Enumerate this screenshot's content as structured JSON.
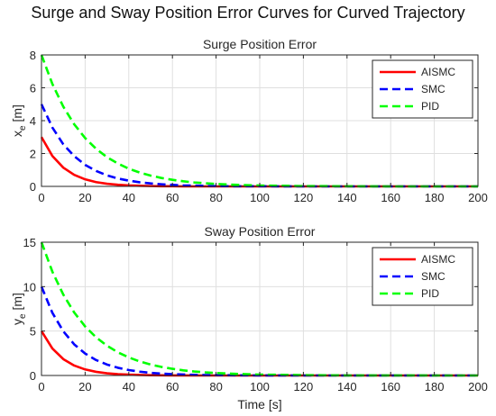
{
  "figure": {
    "title": "Surge and Sway Position Error Curves for Curved Trajectory"
  },
  "chart_data": [
    {
      "type": "line",
      "title": "Surge Position Error",
      "xlabel": "",
      "ylabel_main": "x",
      "ylabel_sub": "e",
      "ylabel_unit": " [m]",
      "xlim": [
        0,
        200
      ],
      "ylim": [
        0,
        8
      ],
      "xticks": [
        0,
        20,
        40,
        60,
        80,
        100,
        120,
        140,
        160,
        180,
        200
      ],
      "yticks": [
        0,
        2,
        4,
        6,
        8
      ],
      "grid": true,
      "legend_position": "top-right",
      "x": [
        0,
        5,
        10,
        15,
        20,
        25,
        30,
        35,
        40,
        45,
        50,
        55,
        60,
        65,
        70,
        75,
        80,
        90,
        100,
        120,
        140,
        160,
        180,
        200
      ],
      "series": [
        {
          "name": "AISMC",
          "color": "#ff0000",
          "dash": "solid",
          "values": [
            3.0,
            1.85,
            1.14,
            0.7,
            0.43,
            0.26,
            0.16,
            0.1,
            0.06,
            0.04,
            0.02,
            0.01,
            0.01,
            0.0,
            0.0,
            0.0,
            0.0,
            0.0,
            0.0,
            0.0,
            0.0,
            0.0,
            0.0,
            0.0
          ]
        },
        {
          "name": "SMC",
          "color": "#0000ff",
          "dash": "dashed",
          "values": [
            5.0,
            3.58,
            2.56,
            1.84,
            1.31,
            0.94,
            0.67,
            0.48,
            0.35,
            0.25,
            0.18,
            0.13,
            0.09,
            0.06,
            0.05,
            0.03,
            0.02,
            0.01,
            0.01,
            0.0,
            0.0,
            0.0,
            0.0,
            0.0
          ]
        },
        {
          "name": "PID",
          "color": "#00ff00",
          "dash": "dashed",
          "values": [
            8.0,
            6.23,
            4.85,
            3.78,
            2.94,
            2.29,
            1.78,
            1.39,
            1.08,
            0.84,
            0.66,
            0.51,
            0.4,
            0.31,
            0.24,
            0.19,
            0.15,
            0.09,
            0.05,
            0.02,
            0.01,
            0.0,
            0.0,
            0.0
          ]
        }
      ]
    },
    {
      "type": "line",
      "title": "Sway Position Error",
      "xlabel": "Time [s]",
      "ylabel_main": "y",
      "ylabel_sub": "e",
      "ylabel_unit": " [m]",
      "xlim": [
        0,
        200
      ],
      "ylim": [
        0,
        15
      ],
      "xticks": [
        0,
        20,
        40,
        60,
        80,
        100,
        120,
        140,
        160,
        180,
        200
      ],
      "yticks": [
        0,
        5,
        10,
        15
      ],
      "grid": true,
      "legend_position": "top-right",
      "x": [
        0,
        5,
        10,
        15,
        20,
        25,
        30,
        35,
        40,
        45,
        50,
        55,
        60,
        65,
        70,
        75,
        80,
        90,
        100,
        120,
        140,
        160,
        180,
        200
      ],
      "series": [
        {
          "name": "AISMC",
          "color": "#ff0000",
          "dash": "solid",
          "values": [
            5.0,
            3.03,
            1.84,
            1.12,
            0.68,
            0.41,
            0.25,
            0.15,
            0.09,
            0.06,
            0.03,
            0.02,
            0.01,
            0.01,
            0.0,
            0.0,
            0.0,
            0.0,
            0.0,
            0.0,
            0.0,
            0.0,
            0.0,
            0.0
          ]
        },
        {
          "name": "SMC",
          "color": "#0000ff",
          "dash": "dashed",
          "values": [
            10.0,
            7.05,
            4.97,
            3.5,
            2.47,
            1.74,
            1.23,
            0.87,
            0.61,
            0.43,
            0.3,
            0.21,
            0.15,
            0.11,
            0.07,
            0.05,
            0.04,
            0.02,
            0.01,
            0.0,
            0.0,
            0.0,
            0.0,
            0.0
          ]
        },
        {
          "name": "PID",
          "color": "#00ff00",
          "dash": "dashed",
          "values": [
            15.0,
            11.68,
            9.1,
            7.09,
            5.52,
            4.3,
            3.35,
            2.61,
            2.03,
            1.58,
            1.23,
            0.96,
            0.75,
            0.58,
            0.45,
            0.35,
            0.28,
            0.17,
            0.1,
            0.04,
            0.01,
            0.01,
            0.0,
            0.0
          ]
        }
      ]
    }
  ]
}
